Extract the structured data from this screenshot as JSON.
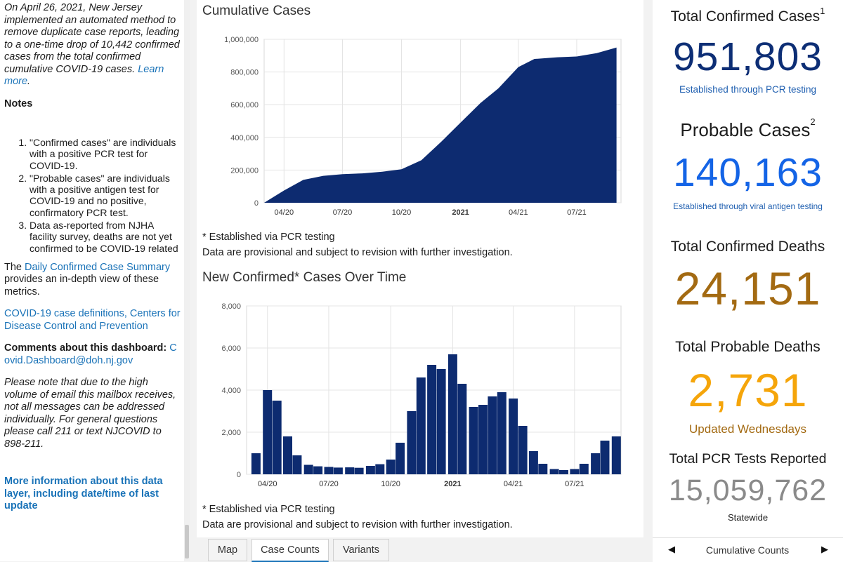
{
  "left": {
    "intro": "On April 26, 2021, New Jersey implemented an automated method to remove duplicate case reports, leading to a one-time drop of 10,442 confirmed cases from the total confirmed cumulative COVID-19 cases.",
    "learn_more": "Learn more",
    "intro_end": ".",
    "notes_heading": "Notes",
    "notes": [
      "\"Confirmed cases\" are individuals with a positive PCR test for COVID-19.",
      "\"Probable cases\" are individuals with a positive antigen test for COVID-19 and no positive, confirmatory PCR test.",
      "Data as-reported from NJHA facility survey, deaths are not yet confirmed to be COVID-19 related"
    ],
    "daily_prefix": "The ",
    "daily_link": "Daily Confirmed Case Summary",
    "daily_suffix": " provides an in-depth view of these metrics.",
    "cdc_link": "COVID-19 case definitions, Centers for Disease Control and Prevention",
    "comments_label": "Comments about this dashboard:",
    "comments_email": "Covid.Dashboard@doh.nj.gov",
    "mailbox_note": "Please note that due to the high volume of email this mailbox receives, not all messages can be addressed individually. For general questions please call 211 or text NJCOVID to 898-211.",
    "more_info": "More information about this data layer, including date/time of last update"
  },
  "middle": {
    "cumulative_title": "Cumulative Cases",
    "cumulative_note1": "* Established via PCR testing",
    "cumulative_note2": "Data are provisional and subject to revision with further investigation.",
    "new_title": "New Confirmed* Cases Over Time",
    "new_note1": "* Established via PCR testing",
    "new_note2": "Data are provisional and subject to revision with further investigation."
  },
  "tabs": [
    {
      "label": "Map",
      "active": false
    },
    {
      "label": "Case Counts",
      "active": true
    },
    {
      "label": "Variants",
      "active": false
    }
  ],
  "right": {
    "confirmed_label": "Total Confirmed Cases",
    "confirmed_sup": "1",
    "confirmed_value": "951,803",
    "confirmed_sub": "Established through PCR testing",
    "probable_label": "Probable Cases",
    "probable_sup": "2",
    "probable_value": "140,163",
    "probable_sub": "Established through viral antigen testing",
    "deaths_label": "Total Confirmed Deaths",
    "deaths_value": "24,151",
    "pdeaths_label": "Total Probable Deaths",
    "pdeaths_value": "2,731",
    "pdeaths_sub": "Updated Wednesdays",
    "tests_label": "Total PCR Tests Reported",
    "tests_value": "15,059,762",
    "tests_sub": "Statewide",
    "footer_label": "Cumulative Counts",
    "colors": {
      "navy": "#0d2e75",
      "blue": "#1464e6",
      "bronze": "#a36a12",
      "gold": "#f5a50a",
      "gray": "#8a8a8a"
    }
  },
  "chart_data": [
    {
      "type": "area",
      "title": "Cumulative Cases",
      "x_tick_labels": [
        "04/20",
        "07/20",
        "10/20",
        "2021",
        "04/21",
        "07/21"
      ],
      "y_tick_labels": [
        "0",
        "200,000",
        "400,000",
        "600,000",
        "800,000",
        "1,000,000"
      ],
      "ylim": [
        0,
        1000000
      ],
      "x": [
        "2020-03-01",
        "2020-04-01",
        "2020-05-01",
        "2020-06-01",
        "2020-07-01",
        "2020-08-01",
        "2020-09-01",
        "2020-10-01",
        "2020-11-01",
        "2020-12-01",
        "2021-01-01",
        "2021-02-01",
        "2021-03-01",
        "2021-04-01",
        "2021-04-26",
        "2021-05-01",
        "2021-06-01",
        "2021-07-01",
        "2021-08-01",
        "2021-09-01"
      ],
      "values": [
        0,
        75000,
        140000,
        165000,
        175000,
        180000,
        190000,
        205000,
        260000,
        370000,
        490000,
        610000,
        700000,
        830000,
        880000,
        881000,
        890000,
        895000,
        915000,
        950000
      ],
      "color": "#0d2b70"
    },
    {
      "type": "bar",
      "title": "New Confirmed* Cases Over Time",
      "x_tick_labels": [
        "04/20",
        "07/20",
        "10/20",
        "2021",
        "04/21",
        "07/21"
      ],
      "y_tick_labels": [
        "0",
        "2,000",
        "4,000",
        "6,000",
        "8,000"
      ],
      "ylim": [
        0,
        8000
      ],
      "x": [
        "2020-03-01",
        "2020-03-15",
        "2020-04-01",
        "2020-04-15",
        "2020-05-01",
        "2020-05-15",
        "2020-06-01",
        "2020-06-15",
        "2020-07-01",
        "2020-07-15",
        "2020-08-01",
        "2020-08-15",
        "2020-09-01",
        "2020-09-15",
        "2020-10-01",
        "2020-10-15",
        "2020-11-01",
        "2020-11-15",
        "2020-12-01",
        "2020-12-15",
        "2021-01-01",
        "2021-01-15",
        "2021-02-01",
        "2021-02-15",
        "2021-03-01",
        "2021-03-15",
        "2021-04-01",
        "2021-04-15",
        "2021-05-01",
        "2021-05-15",
        "2021-06-01",
        "2021-06-15",
        "2021-07-01",
        "2021-07-15",
        "2021-08-01",
        "2021-08-15",
        "2021-09-01"
      ],
      "values": [
        0,
        1000,
        4000,
        3500,
        1800,
        900,
        450,
        380,
        350,
        320,
        330,
        310,
        400,
        480,
        700,
        1500,
        3000,
        4600,
        5200,
        5000,
        5700,
        4300,
        3200,
        3300,
        3700,
        3900,
        3600,
        2300,
        1100,
        500,
        250,
        200,
        250,
        500,
        1000,
        1600,
        1800
      ],
      "color": "#0d2b70"
    }
  ]
}
